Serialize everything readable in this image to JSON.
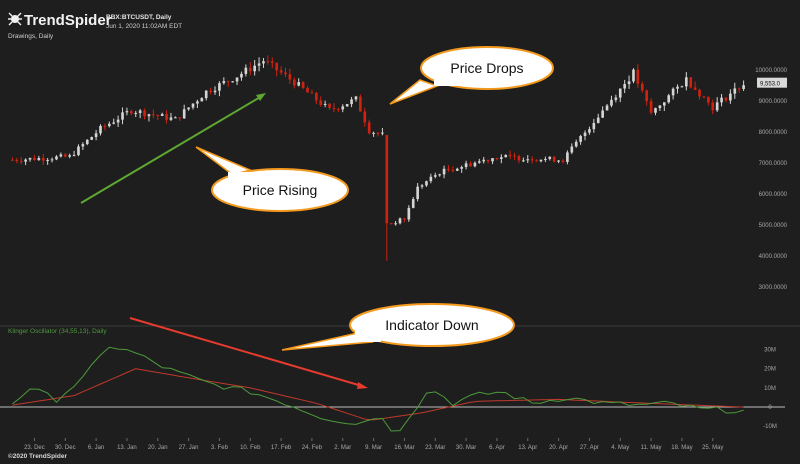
{
  "brand": {
    "name": "TrendSpider",
    "icon": "trendspider-spider-icon"
  },
  "header": {
    "symbol": "BBX:BTCUSDT, Daily",
    "datetime": "Jun 1, 2020 11:02AM EDT",
    "layer": "Drawings, Daily"
  },
  "footer": {
    "copyright": "©2020 TrendSpider"
  },
  "annotations": [
    {
      "id": "price-rising",
      "text": "Price Rising"
    },
    {
      "id": "price-drops",
      "text": "Price Drops"
    },
    {
      "id": "indicator-down",
      "text": "Indicator Down"
    }
  ],
  "colors": {
    "background": "#1e1e1e",
    "bullish": "#d4d4d4",
    "bearish": "#d0220f",
    "uptrend_arrow": "#5ea832",
    "downtrend_arrow": "#e63b2e",
    "oscillator": "#4d9a3c",
    "signal": "#c0392b",
    "bubble_fill": "#ffffff",
    "bubble_border": "#f39a1e",
    "price_tag": "#d9d9d9"
  },
  "chart_data": [
    {
      "type": "candlestick",
      "ylim": [
        2000,
        10800
      ],
      "y_ticks": [
        "10000.0000",
        "9000.0000",
        "8000.0000",
        "7000.0000",
        "6000.0000",
        "5000.0000",
        "4000.0000",
        "3000.0000"
      ],
      "y_tick_values": [
        10000,
        9000,
        8000,
        7000,
        6000,
        5000,
        4000,
        3000
      ],
      "last_price": "9,553.0",
      "last_price_value": 9553,
      "grid": false,
      "anchors": [
        [
          "2019-12-18",
          7100
        ],
        [
          "2019-12-31",
          7200
        ],
        [
          "2020-01-07",
          8100
        ],
        [
          "2020-01-14",
          8700
        ],
        [
          "2020-01-24",
          8400
        ],
        [
          "2020-01-31",
          9300
        ],
        [
          "2020-02-07",
          9800
        ],
        [
          "2020-02-13",
          10300
        ],
        [
          "2020-02-20",
          9600
        ],
        [
          "2020-02-28",
          8700
        ],
        [
          "2020-03-05",
          9050
        ],
        [
          "2020-03-08",
          8050
        ],
        [
          "2020-03-11",
          7900
        ],
        [
          "2020-03-12",
          5000
        ],
        [
          "2020-03-16",
          5200
        ],
        [
          "2020-03-19",
          6200
        ],
        [
          "2020-03-24",
          6700
        ],
        [
          "2020-04-06",
          7200
        ],
        [
          "2020-04-21",
          7100
        ],
        [
          "2020-04-30",
          8700
        ],
        [
          "2020-05-07",
          9900
        ],
        [
          "2020-05-11",
          8600
        ],
        [
          "2020-05-19",
          9700
        ],
        [
          "2020-05-25",
          8800
        ],
        [
          "2020-06-01",
          9553
        ]
      ]
    },
    {
      "type": "line",
      "name": "Klinger Oscillator (34,55,13), Daily",
      "ylim": [
        -13,
        36
      ],
      "y_ticks": [
        "30M",
        "20M",
        "10M",
        "0",
        "-10M"
      ],
      "y_tick_values": [
        30,
        20,
        10,
        0,
        -10
      ],
      "x_ticks": [
        "23. Dec",
        "30. Dec",
        "6. Jan",
        "13. Jan",
        "20. Jan",
        "27. Jan",
        "3. Feb",
        "10. Feb",
        "17. Feb",
        "24. Feb",
        "2. Mar",
        "9. Mar",
        "16. Mar",
        "23. Mar",
        "30. Mar",
        "6. Apr",
        "13. Apr",
        "20. Apr",
        "27. Apr",
        "4. May",
        "11. May",
        "18. May",
        "25. May"
      ],
      "x_tick_dates": [
        "2019-12-23",
        "2019-12-30",
        "2020-01-06",
        "2020-01-13",
        "2020-01-20",
        "2020-01-27",
        "2020-02-03",
        "2020-02-10",
        "2020-02-17",
        "2020-02-24",
        "2020-03-02",
        "2020-03-09",
        "2020-03-16",
        "2020-03-23",
        "2020-03-30",
        "2020-04-06",
        "2020-04-13",
        "2020-04-20",
        "2020-04-27",
        "2020-05-04",
        "2020-05-11",
        "2020-05-18",
        "2020-05-25"
      ],
      "oscillator_anchors": [
        [
          "2019-12-18",
          2
        ],
        [
          "2019-12-22",
          10
        ],
        [
          "2019-12-28",
          4
        ],
        [
          "2020-01-03",
          15
        ],
        [
          "2020-01-09",
          32
        ],
        [
          "2020-01-15",
          28
        ],
        [
          "2020-01-22",
          20
        ],
        [
          "2020-02-01",
          12
        ],
        [
          "2020-02-10",
          8
        ],
        [
          "2020-02-18",
          2
        ],
        [
          "2020-02-26",
          -5
        ],
        [
          "2020-03-05",
          -9
        ],
        [
          "2020-03-10",
          -4
        ],
        [
          "2020-03-14",
          -14
        ],
        [
          "2020-03-18",
          -2
        ],
        [
          "2020-03-22",
          10
        ],
        [
          "2020-03-27",
          2
        ],
        [
          "2020-04-01",
          6
        ],
        [
          "2020-04-07",
          8
        ],
        [
          "2020-04-14",
          2
        ],
        [
          "2020-04-22",
          5
        ],
        [
          "2020-04-30",
          2
        ],
        [
          "2020-05-08",
          1
        ],
        [
          "2020-05-15",
          2
        ],
        [
          "2020-05-22",
          -1
        ],
        [
          "2020-06-01",
          -2
        ]
      ],
      "signal_anchors": [
        [
          "2019-12-18",
          1
        ],
        [
          "2020-01-01",
          6
        ],
        [
          "2020-01-15",
          20
        ],
        [
          "2020-01-25",
          16
        ],
        [
          "2020-02-10",
          10
        ],
        [
          "2020-02-25",
          2
        ],
        [
          "2020-03-08",
          -7
        ],
        [
          "2020-03-20",
          -3
        ],
        [
          "2020-04-01",
          3
        ],
        [
          "2020-04-20",
          4
        ],
        [
          "2020-05-10",
          2
        ],
        [
          "2020-06-01",
          0
        ]
      ]
    }
  ]
}
